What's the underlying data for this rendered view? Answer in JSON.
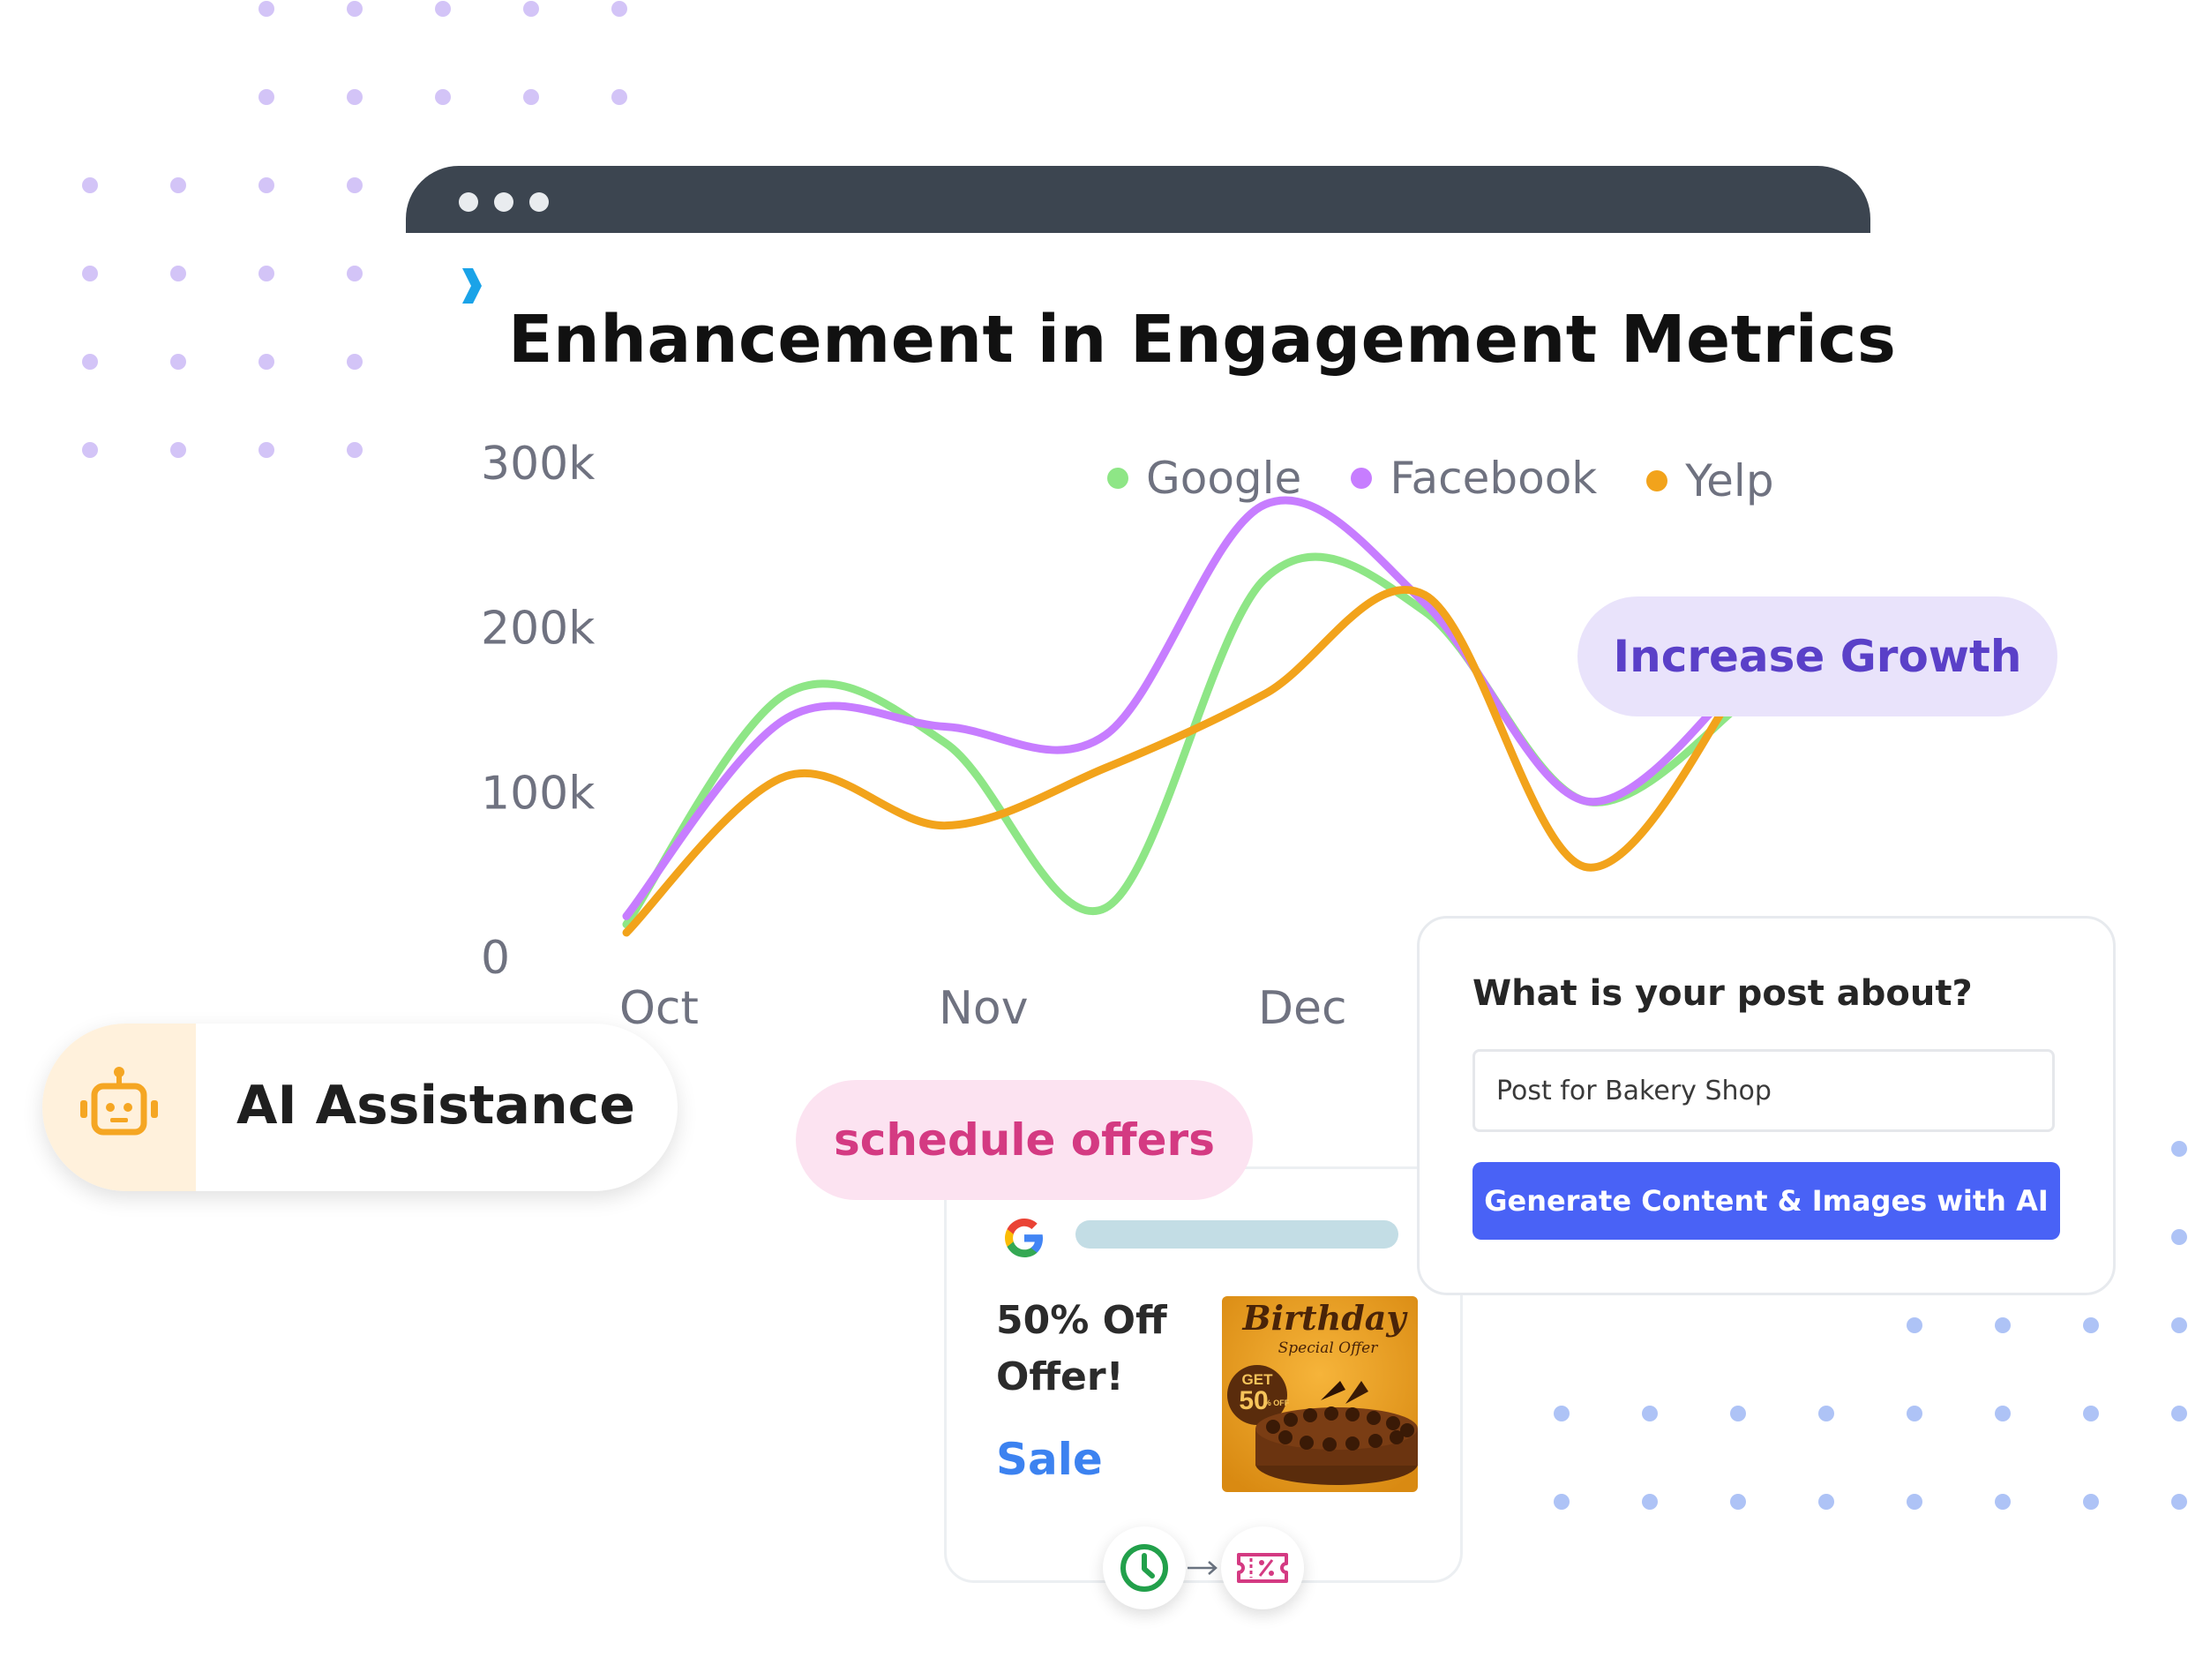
{
  "chart_title": "Enhancement in Engagement Metrics",
  "chart_data": {
    "type": "line",
    "title": "Enhancement in Engagement Metrics",
    "x_ticks": [
      "Oct",
      "Nov",
      "Dec"
    ],
    "y_ticks": [
      "0",
      "100k",
      "200k",
      "300k"
    ],
    "ylim": [
      0,
      300000
    ],
    "x": [
      0,
      0.5,
      1,
      1.5,
      2,
      2.5,
      3,
      3.5
    ],
    "legend_position": "top-right",
    "series": [
      {
        "name": "Google",
        "color": "#8ee686",
        "values": [
          20000,
          160000,
          130000,
          30000,
          230000,
          210000,
          95000,
          155000
        ]
      },
      {
        "name": "Facebook",
        "color": "#c77dff",
        "values": [
          25000,
          145000,
          140000,
          135000,
          275000,
          215000,
          95000,
          170000
        ]
      },
      {
        "name": "Yelp",
        "color": "#f2a31b",
        "values": [
          15000,
          110000,
          80000,
          115000,
          160000,
          220000,
          55000,
          170000
        ]
      }
    ]
  },
  "legend": [
    {
      "label": "Google",
      "color": "#8ee686"
    },
    {
      "label": "Facebook",
      "color": "#c77dff"
    },
    {
      "label": "Yelp",
      "color": "#f2a31b"
    }
  ],
  "pills": {
    "growth": "Increase Growth",
    "schedule": "schedule offers",
    "ai": "AI Assistance"
  },
  "ad": {
    "offer_text": "50% Off Offer!",
    "sale_text": "Sale",
    "image_title": "Birthday",
    "image_subtitle": "Special Offer",
    "image_badge_top": "GET",
    "image_badge_value": "50",
    "image_badge_unit": "% OFF"
  },
  "form": {
    "question": "What is your post about?",
    "input_value": "Post for Bakery Shop",
    "button_label": "Generate Content & Images with AI"
  },
  "icons": {
    "ai": "robot-icon",
    "brand": "google-g-icon",
    "clock": "clock-icon",
    "ticket": "discount-ticket-icon"
  },
  "colors": {
    "window_bar": "#3c4550",
    "primary_button": "#4962f6",
    "growth_pill_bg": "#e9e3fb",
    "growth_pill_text": "#5a40c8",
    "schedule_pill_bg": "#fce3f1",
    "schedule_pill_text": "#d43a82"
  }
}
